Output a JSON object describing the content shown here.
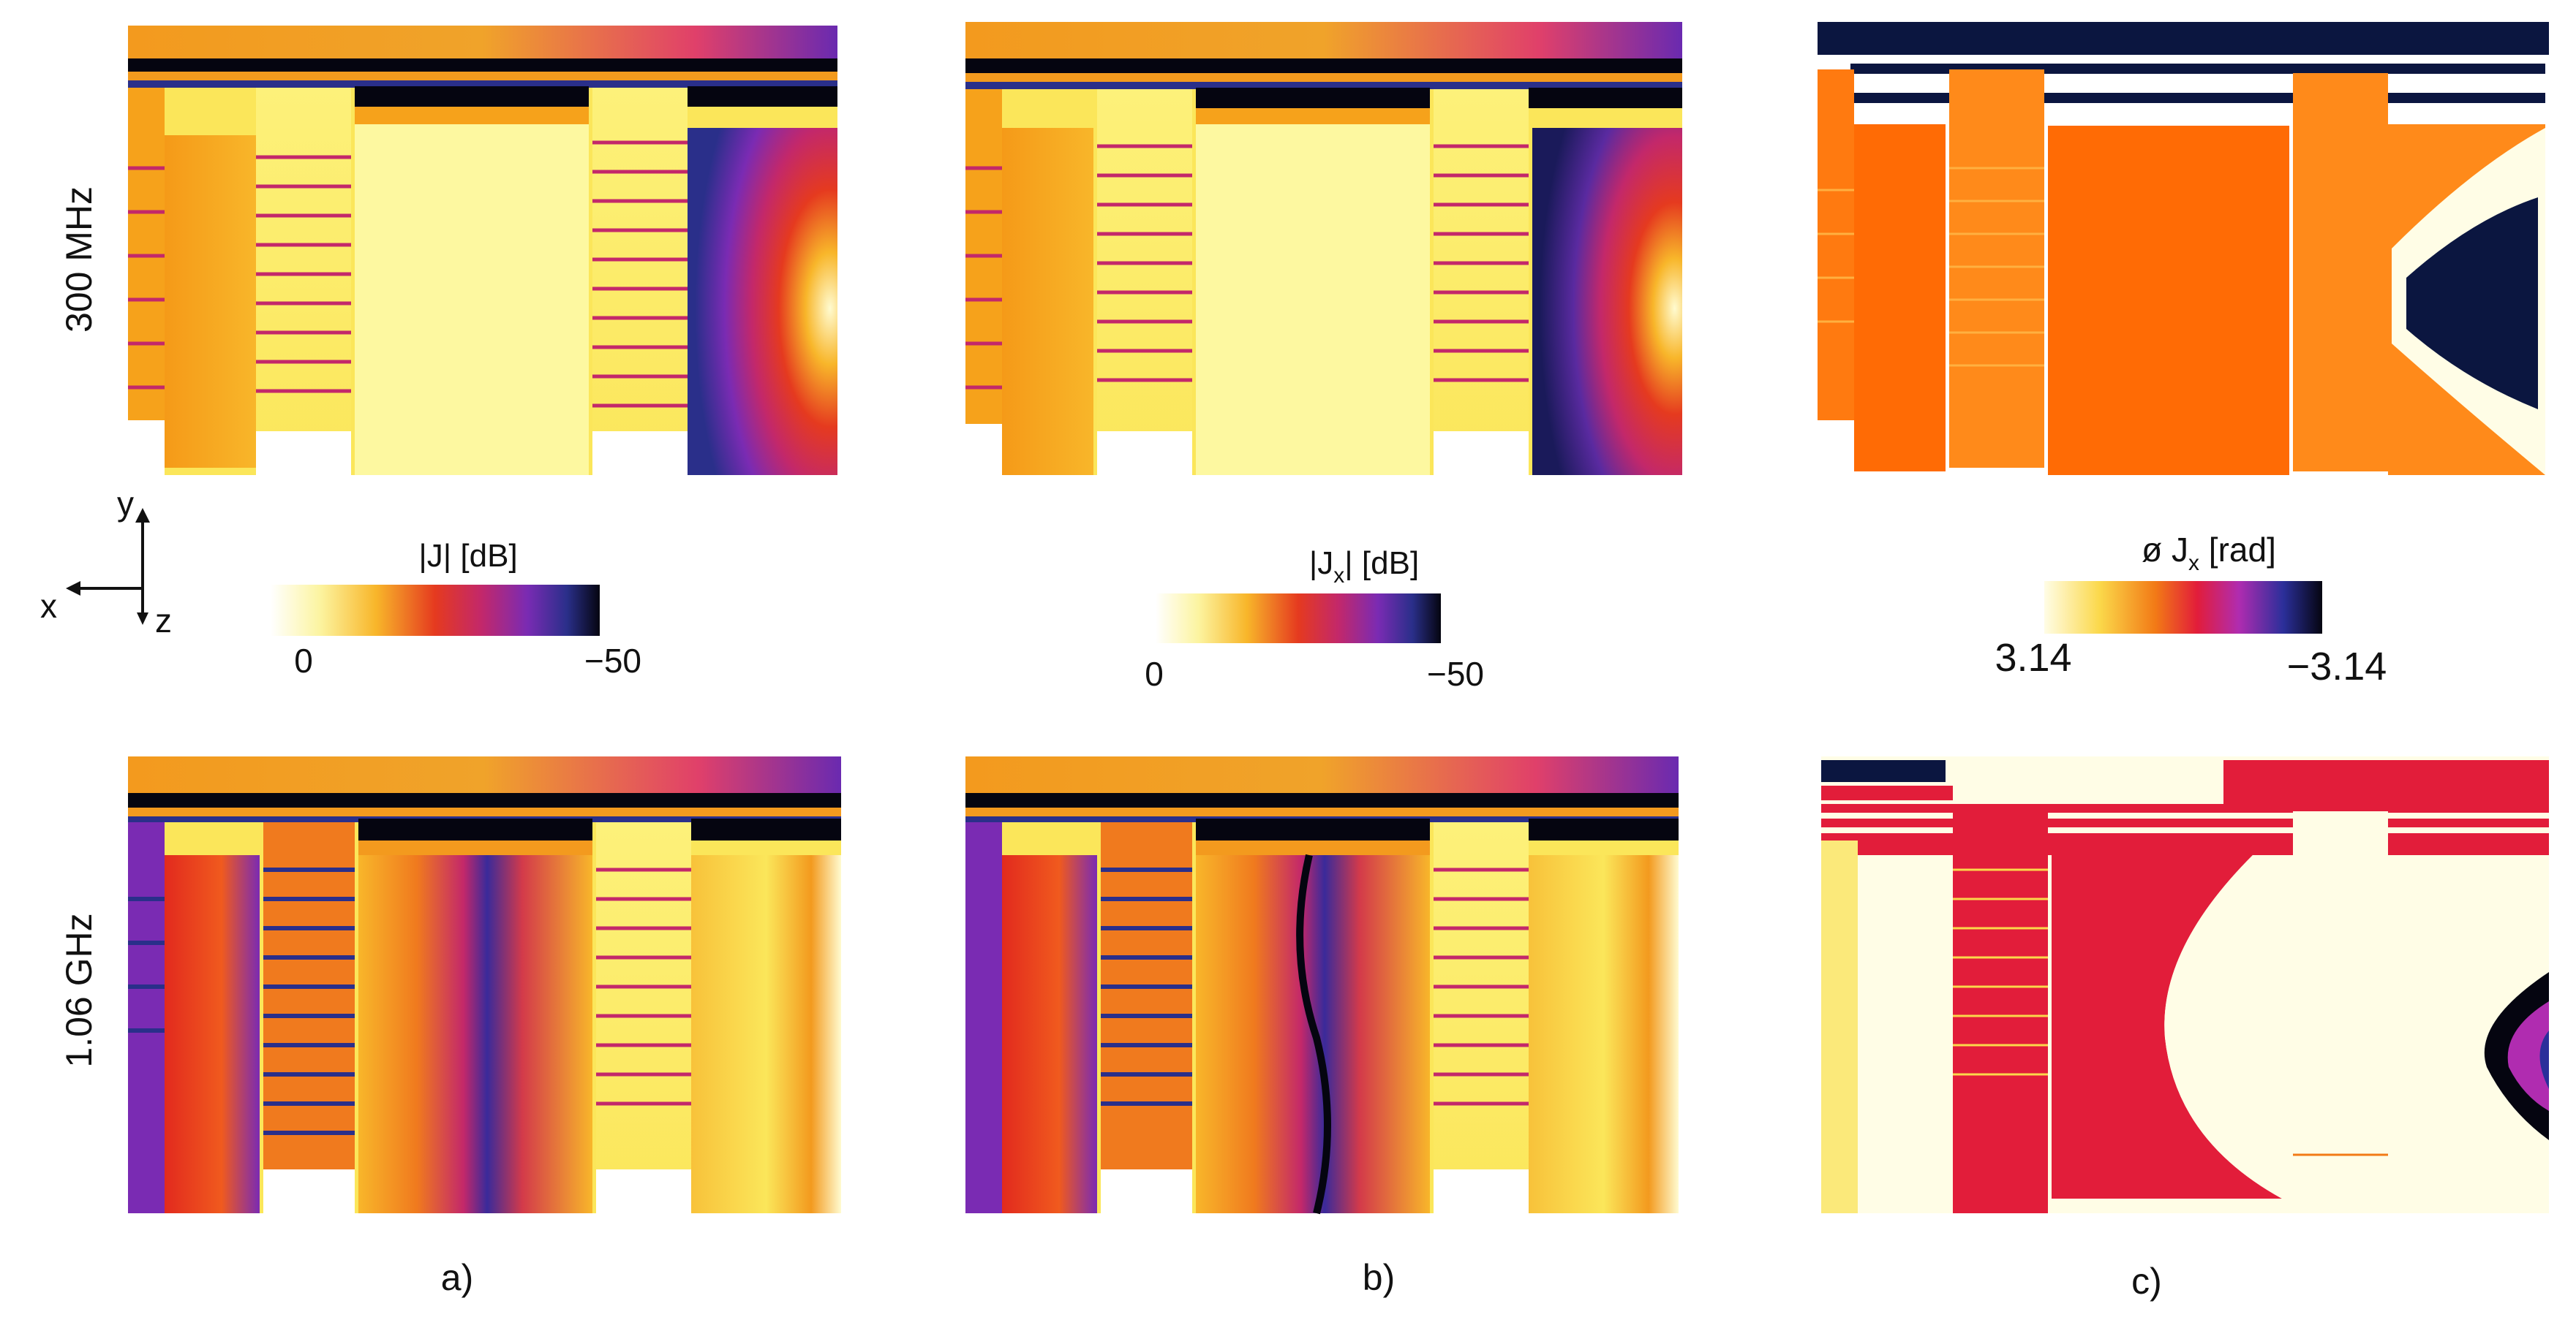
{
  "rows": [
    {
      "label": "300 MHz"
    },
    {
      "label": "1.06 GHz"
    }
  ],
  "columns": [
    {
      "caption": "a)",
      "colorbar": {
        "label": "|J| [dB]",
        "min_label": "0",
        "max_label": "−50",
        "scheme": "inferno-reversed"
      }
    },
    {
      "caption": "b)",
      "colorbar": {
        "label": "|J",
        "label_sub": "x",
        "label_tail": "| [dB]",
        "min_label": "0",
        "max_label": "−50",
        "scheme": "inferno-reversed"
      }
    },
    {
      "caption": "c)",
      "colorbar": {
        "label": "ø J",
        "label_sub": "x",
        "label_tail": " [rad]",
        "min_label": "3.14",
        "max_label": "−3.14",
        "scheme": "phase"
      }
    }
  ],
  "axes": {
    "y": "y",
    "x": "x",
    "z": "z"
  },
  "colors": {
    "pale": "#fdfdb0",
    "yellow": "#fbe65a",
    "orange": "#f6a21b",
    "red": "#e53a1f",
    "magenta": "#c3286a",
    "purple": "#7a2bb3",
    "blue": "#2a2f8a",
    "black": "#050510",
    "phase_orange": "#ff6b05",
    "phase_navy": "#0b1640"
  }
}
